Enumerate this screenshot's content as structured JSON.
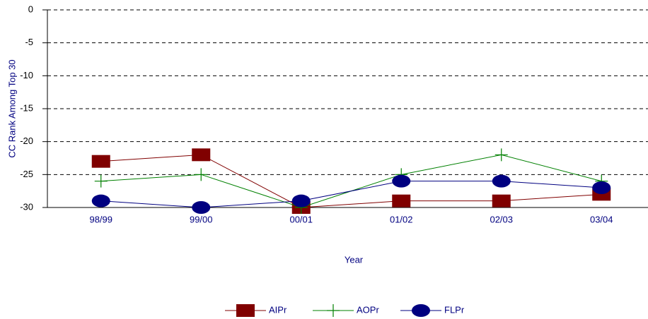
{
  "chart_data": {
    "type": "line",
    "categories": [
      "98/99",
      "99/00",
      "00/01",
      "01/02",
      "02/03",
      "03/04"
    ],
    "series": [
      {
        "name": "AIPr",
        "color": "#800000",
        "marker": "square",
        "values": [
          -23,
          -22,
          -30,
          -29,
          -29,
          -28
        ]
      },
      {
        "name": "AOPr",
        "color": "#008000",
        "marker": "plus",
        "values": [
          -26,
          -25,
          -30,
          -25,
          -22,
          -26
        ]
      },
      {
        "name": "FLPr",
        "color": "#000080",
        "marker": "ellipse",
        "values": [
          -29,
          -30,
          -29,
          -26,
          -26,
          -27
        ]
      }
    ],
    "x_label": "Year",
    "y_label": "CC Rank Among Top 30",
    "ylim": [
      -30,
      0
    ],
    "yticks": [
      0,
      -5,
      -10,
      -15,
      -20,
      -25,
      -30
    ],
    "grid": true,
    "legend": "bottom"
  }
}
